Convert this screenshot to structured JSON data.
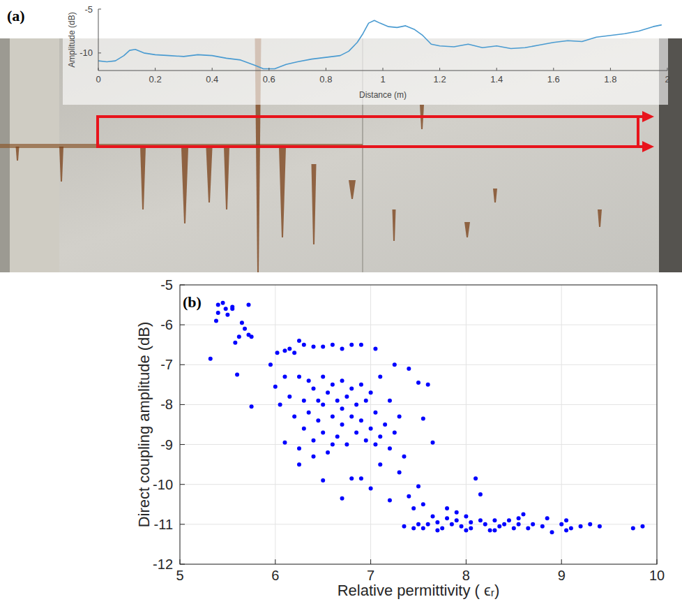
{
  "chart_data": [
    {
      "type": "line",
      "panel_label": "(a)",
      "x_label": "Distance (m)",
      "y_label": "Amplitude (dB)",
      "x": [
        0,
        0.03,
        0.06,
        0.09,
        0.11,
        0.13,
        0.16,
        0.2,
        0.25,
        0.3,
        0.35,
        0.4,
        0.45,
        0.5,
        0.55,
        0.58,
        0.62,
        0.66,
        0.7,
        0.75,
        0.8,
        0.85,
        0.88,
        0.91,
        0.93,
        0.95,
        0.97,
        0.99,
        1.02,
        1.05,
        1.08,
        1.11,
        1.14,
        1.17,
        1.2,
        1.25,
        1.3,
        1.35,
        1.4,
        1.45,
        1.5,
        1.55,
        1.6,
        1.65,
        1.7,
        1.75,
        1.8,
        1.85,
        1.9,
        1.95,
        1.98
      ],
      "values": [
        -10.9,
        -11.0,
        -10.9,
        -10.3,
        -9.7,
        -9.6,
        -10.0,
        -10.2,
        -10.3,
        -10.4,
        -10.2,
        -10.3,
        -10.6,
        -10.8,
        -11.4,
        -11.8,
        -11.8,
        -11.3,
        -11.0,
        -10.7,
        -10.5,
        -10.3,
        -9.8,
        -8.8,
        -7.8,
        -6.6,
        -6.3,
        -6.6,
        -7.0,
        -7.1,
        -6.9,
        -7.3,
        -8.0,
        -9.0,
        -9.2,
        -9.3,
        -9.0,
        -9.4,
        -9.2,
        -9.5,
        -9.4,
        -9.1,
        -8.8,
        -8.6,
        -8.7,
        -8.2,
        -8.0,
        -7.8,
        -7.5,
        -7.0,
        -6.8
      ],
      "color": "#4a9bd1",
      "xlim": [
        0,
        2
      ],
      "xticks": [
        0,
        0.2,
        0.4,
        0.6,
        0.8,
        1,
        1.2,
        1.4,
        1.6,
        1.8,
        2
      ],
      "ylim": [
        -12,
        -5
      ],
      "yticks": [
        -10,
        -5
      ],
      "grid": false
    },
    {
      "type": "scatter",
      "panel_label": "(b)",
      "x_label": "Relative permittivity ( ϵᵣ)",
      "y_label": "Direct coupling amplitude (dB)",
      "x": [
        5.32,
        5.38,
        5.4,
        5.45,
        5.48,
        5.5,
        5.55,
        5.58,
        5.6,
        5.62,
        5.65,
        5.68,
        5.72,
        5.72,
        5.75,
        5.75,
        5.4,
        5.55,
        5.95,
        6.0,
        6.02,
        6.05,
        6.1,
        6.15,
        6.2,
        6.25,
        6.3,
        6.4,
        6.5,
        6.6,
        6.7,
        6.8,
        6.9,
        7.05,
        7.25,
        7.4,
        7.6,
        7.55,
        7.5,
        6.15,
        6.2,
        6.25,
        6.25,
        6.3,
        6.3,
        6.35,
        6.35,
        6.4,
        6.4,
        6.45,
        6.45,
        6.5,
        6.5,
        6.5,
        6.55,
        6.55,
        6.6,
        6.6,
        6.65,
        6.65,
        6.7,
        6.7,
        6.7,
        6.75,
        6.75,
        6.8,
        6.8,
        6.85,
        6.85,
        6.9,
        6.9,
        6.95,
        6.95,
        7.0,
        7.0,
        7.05,
        7.05,
        7.1,
        7.1,
        7.15,
        7.2,
        7.2,
        7.25,
        7.3,
        7.35,
        6.25,
        6.1,
        6.5,
        6.7,
        6.8,
        6.9,
        7.1,
        7.0,
        7.3,
        7.4,
        7.45,
        7.2,
        7.5,
        7.55,
        6.4,
        6.6,
        7.65,
        6.1,
        7.35,
        7.45,
        7.6,
        7.7,
        7.75,
        7.8,
        7.85,
        7.9,
        7.95,
        8.0,
        8.05,
        8.1,
        8.15,
        8.2,
        8.25,
        8.3,
        8.35,
        8.4,
        8.45,
        8.5,
        8.55,
        8.6,
        8.65,
        8.7,
        8.8,
        8.9,
        9.0,
        9.05,
        9.1,
        9.2,
        9.3,
        9.4,
        9.75,
        9.85,
        7.9,
        8.0,
        7.65,
        7.55,
        8.3,
        8.55,
        7.8,
        8.05,
        8.15,
        7.7,
        7.5,
        9.05,
        8.85
      ],
      "values": [
        -6.85,
        -5.9,
        -5.5,
        -5.45,
        -5.6,
        -5.75,
        -5.6,
        -6.45,
        -7.25,
        -6.3,
        -5.95,
        -6.1,
        -5.5,
        -6.25,
        -6.3,
        -8.05,
        -5.7,
        -5.55,
        -7.0,
        -7.55,
        -6.7,
        -8.0,
        -6.65,
        -6.6,
        -6.7,
        -6.4,
        -6.5,
        -6.55,
        -6.55,
        -6.5,
        -6.6,
        -6.5,
        -6.5,
        -6.6,
        -7.0,
        -7.1,
        -7.5,
        -8.35,
        -7.45,
        -7.8,
        -8.3,
        -7.3,
        -9.1,
        -7.9,
        -8.6,
        -7.4,
        -8.2,
        -7.6,
        -8.9,
        -7.9,
        -8.4,
        -7.3,
        -8.0,
        -8.7,
        -7.7,
        -9.2,
        -7.5,
        -8.3,
        -7.9,
        -8.8,
        -7.4,
        -8.1,
        -8.5,
        -7.8,
        -9.0,
        -7.6,
        -8.3,
        -8.0,
        -8.7,
        -7.5,
        -8.4,
        -7.9,
        -8.9,
        -7.7,
        -8.6,
        -8.2,
        -9.0,
        -7.3,
        -8.8,
        -8.5,
        -7.9,
        -9.1,
        -8.7,
        -8.3,
        -9.3,
        -9.5,
        -8.95,
        -9.9,
        -10.35,
        -9.85,
        -9.85,
        -9.5,
        -10.1,
        -9.7,
        -10.3,
        -10.6,
        -10.4,
        -10.05,
        -10.5,
        -9.3,
        -9.0,
        -8.95,
        -7.3,
        -11.05,
        -11.1,
        -11.0,
        -10.95,
        -11.1,
        -10.85,
        -11.0,
        -10.9,
        -11.05,
        -10.8,
        -11.1,
        -9.85,
        -10.9,
        -11.0,
        -11.15,
        -10.9,
        -11.05,
        -11.0,
        -10.9,
        -11.1,
        -11.0,
        -10.75,
        -11.1,
        -11.0,
        -11.05,
        -11.2,
        -11.0,
        -10.9,
        -11.1,
        -11.05,
        -11.0,
        -11.05,
        -11.1,
        -11.05,
        -10.7,
        -11.15,
        -10.8,
        -11.1,
        -11.15,
        -10.85,
        -10.6,
        -10.95,
        -10.25,
        -11.15,
        -11.0,
        -11.15,
        -10.85
      ],
      "color": "#0000ff",
      "marker": "circle",
      "xlim": [
        5,
        10
      ],
      "xticks": [
        5,
        6,
        7,
        8,
        9,
        10
      ],
      "ylim": [
        -12,
        -5
      ],
      "yticks": [
        -12,
        -11,
        -10,
        -9,
        -8,
        -7,
        -6,
        -5
      ],
      "grid": true
    }
  ]
}
